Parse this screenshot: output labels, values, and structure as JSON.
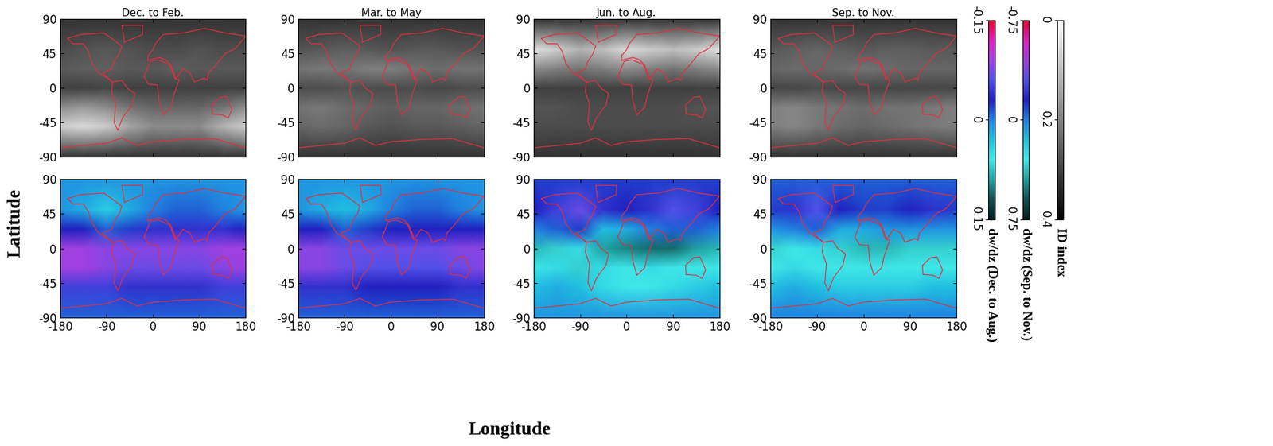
{
  "chart_data": {
    "type": "heatmap",
    "x_label": "Longitude",
    "y_label": "Latitude",
    "xlim": [
      -180,
      180
    ],
    "ylim": [
      -90,
      90
    ],
    "xticks": [
      -180,
      -90,
      0,
      90,
      180
    ],
    "yticks": [
      -90,
      -45,
      0,
      45,
      90
    ],
    "lon": [
      -180,
      -135,
      -90,
      -45,
      0,
      45,
      90,
      135,
      180
    ],
    "lat": [
      90,
      50,
      25,
      0,
      -25,
      -50,
      -90
    ],
    "colorbars": [
      {
        "label": "dw/dz (Dec. to Aug.)",
        "range": [
          -0.15,
          0.15
        ],
        "ticks": [
          -0.15,
          0,
          0.15
        ]
      },
      {
        "label": "dw/dz (Sep. to Nov.)",
        "range": [
          -0.75,
          0.75
        ],
        "ticks": [
          -0.75,
          0,
          0.75
        ]
      },
      {
        "label": "ID index",
        "range": [
          0,
          0.4
        ],
        "ticks": [
          0,
          0.2,
          0.4
        ]
      }
    ],
    "top_row": {
      "colorbar": "ID index",
      "panels": [
        {
          "title": "Dec. to Feb.",
          "cells": [
            [
              0.32,
              0.32,
              0.32,
              0.32,
              0.32,
              0.32,
              0.32,
              0.32,
              0.32
            ],
            [
              0.28,
              0.27,
              0.26,
              0.27,
              0.28,
              0.28,
              0.27,
              0.28,
              0.28
            ],
            [
              0.26,
              0.25,
              0.25,
              0.26,
              0.26,
              0.25,
              0.26,
              0.26,
              0.26
            ],
            [
              0.3,
              0.3,
              0.29,
              0.3,
              0.3,
              0.3,
              0.3,
              0.3,
              0.3
            ],
            [
              0.18,
              0.16,
              0.18,
              0.22,
              0.24,
              0.24,
              0.24,
              0.22,
              0.18
            ],
            [
              0.08,
              0.06,
              0.08,
              0.14,
              0.18,
              0.18,
              0.18,
              0.12,
              0.08
            ],
            [
              0.32,
              0.32,
              0.32,
              0.32,
              0.32,
              0.32,
              0.32,
              0.32,
              0.32
            ]
          ]
        },
        {
          "title": "Mar. to May",
          "cells": [
            [
              0.32,
              0.32,
              0.32,
              0.32,
              0.32,
              0.32,
              0.32,
              0.32,
              0.32
            ],
            [
              0.27,
              0.26,
              0.25,
              0.26,
              0.27,
              0.26,
              0.26,
              0.27,
              0.27
            ],
            [
              0.22,
              0.21,
              0.22,
              0.2,
              0.2,
              0.22,
              0.23,
              0.22,
              0.22
            ],
            [
              0.28,
              0.28,
              0.27,
              0.28,
              0.28,
              0.28,
              0.29,
              0.28,
              0.28
            ],
            [
              0.22,
              0.21,
              0.23,
              0.24,
              0.25,
              0.24,
              0.24,
              0.23,
              0.22
            ],
            [
              0.24,
              0.23,
              0.24,
              0.26,
              0.27,
              0.26,
              0.26,
              0.25,
              0.24
            ],
            [
              0.32,
              0.32,
              0.32,
              0.32,
              0.32,
              0.32,
              0.32,
              0.32,
              0.32
            ]
          ]
        },
        {
          "title": "Jun. to Aug.",
          "cells": [
            [
              0.32,
              0.32,
              0.32,
              0.32,
              0.32,
              0.32,
              0.32,
              0.32,
              0.32
            ],
            [
              0.05,
              0.08,
              0.12,
              0.1,
              0.06,
              0.08,
              0.1,
              0.08,
              0.05
            ],
            [
              0.18,
              0.2,
              0.22,
              0.2,
              0.18,
              0.2,
              0.22,
              0.2,
              0.18
            ],
            [
              0.3,
              0.3,
              0.3,
              0.3,
              0.3,
              0.3,
              0.3,
              0.3,
              0.3
            ],
            [
              0.27,
              0.27,
              0.28,
              0.28,
              0.28,
              0.28,
              0.28,
              0.27,
              0.27
            ],
            [
              0.28,
              0.28,
              0.28,
              0.28,
              0.28,
              0.28,
              0.28,
              0.28,
              0.28
            ],
            [
              0.32,
              0.32,
              0.32,
              0.32,
              0.32,
              0.32,
              0.32,
              0.32,
              0.32
            ]
          ]
        },
        {
          "title": "Sep. to Nov.",
          "cells": [
            [
              0.32,
              0.32,
              0.32,
              0.32,
              0.32,
              0.32,
              0.32,
              0.32,
              0.32
            ],
            [
              0.26,
              0.25,
              0.24,
              0.25,
              0.26,
              0.25,
              0.25,
              0.26,
              0.26
            ],
            [
              0.24,
              0.23,
              0.24,
              0.23,
              0.22,
              0.23,
              0.24,
              0.24,
              0.24
            ],
            [
              0.29,
              0.29,
              0.28,
              0.29,
              0.29,
              0.29,
              0.29,
              0.29,
              0.29
            ],
            [
              0.2,
              0.19,
              0.21,
              0.22,
              0.23,
              0.22,
              0.22,
              0.21,
              0.2
            ],
            [
              0.2,
              0.19,
              0.21,
              0.23,
              0.24,
              0.23,
              0.22,
              0.21,
              0.2
            ],
            [
              0.32,
              0.32,
              0.32,
              0.32,
              0.32,
              0.32,
              0.32,
              0.32,
              0.32
            ]
          ]
        }
      ]
    },
    "bottom_row": {
      "panels": [
        {
          "colorbar": "dw/dz (Dec. to Aug.)",
          "cells": [
            [
              0.01,
              0.01,
              0.01,
              0.01,
              0.01,
              0.01,
              0.01,
              0.01,
              0.01
            ],
            [
              0.01,
              0.02,
              0.04,
              0.02,
              0.0,
              -0.01,
              -0.01,
              0.0,
              0.01
            ],
            [
              -0.03,
              -0.03,
              -0.01,
              -0.02,
              -0.04,
              -0.04,
              -0.04,
              -0.04,
              -0.03
            ],
            [
              -0.09,
              -0.09,
              -0.08,
              -0.08,
              -0.08,
              -0.08,
              -0.08,
              -0.09,
              -0.09
            ],
            [
              -0.09,
              -0.09,
              -0.08,
              -0.07,
              -0.07,
              -0.07,
              -0.07,
              -0.08,
              -0.09
            ],
            [
              -0.05,
              -0.05,
              -0.05,
              -0.04,
              -0.04,
              -0.04,
              -0.04,
              -0.05,
              -0.05
            ],
            [
              -0.01,
              -0.01,
              -0.01,
              -0.01,
              -0.01,
              -0.01,
              -0.01,
              -0.01,
              -0.01
            ]
          ]
        },
        {
          "colorbar": "dw/dz (Dec. to Aug.)",
          "cells": [
            [
              0.01,
              0.01,
              0.01,
              0.01,
              0.01,
              0.01,
              0.01,
              0.01,
              0.01
            ],
            [
              0.01,
              0.02,
              0.03,
              0.02,
              0.0,
              -0.01,
              -0.01,
              0.0,
              0.01
            ],
            [
              -0.03,
              -0.03,
              -0.01,
              -0.02,
              -0.03,
              -0.03,
              -0.03,
              -0.03,
              -0.03
            ],
            [
              -0.08,
              -0.08,
              -0.07,
              -0.07,
              -0.07,
              -0.07,
              -0.07,
              -0.08,
              -0.08
            ],
            [
              -0.08,
              -0.08,
              -0.07,
              -0.06,
              -0.06,
              -0.06,
              -0.06,
              -0.07,
              -0.08
            ],
            [
              -0.04,
              -0.04,
              -0.04,
              -0.03,
              -0.03,
              -0.03,
              -0.03,
              -0.04,
              -0.04
            ],
            [
              -0.01,
              -0.01,
              -0.01,
              -0.01,
              -0.01,
              -0.01,
              -0.01,
              -0.01,
              -0.01
            ]
          ]
        },
        {
          "colorbar": "dw/dz (Dec. to Aug.)",
          "cells": [
            [
              -0.02,
              -0.02,
              -0.02,
              -0.02,
              -0.02,
              -0.02,
              -0.02,
              -0.02,
              -0.02
            ],
            [
              -0.03,
              -0.05,
              -0.07,
              -0.04,
              -0.03,
              -0.04,
              -0.06,
              -0.05,
              -0.03
            ],
            [
              0.0,
              -0.01,
              -0.02,
              0.03,
              0.02,
              0.0,
              -0.01,
              -0.01,
              0.0
            ],
            [
              0.08,
              0.07,
              0.05,
              0.09,
              0.1,
              0.11,
              0.11,
              0.09,
              0.08
            ],
            [
              0.06,
              0.05,
              0.07,
              0.05,
              0.06,
              0.05,
              0.06,
              0.06,
              0.06
            ],
            [
              0.03,
              0.02,
              0.03,
              0.05,
              0.06,
              0.06,
              0.05,
              0.04,
              0.03
            ],
            [
              0.01,
              0.01,
              0.01,
              0.01,
              0.01,
              0.01,
              0.01,
              0.01,
              0.01
            ]
          ]
        },
        {
          "colorbar": "dw/dz (Sep. to Nov.)",
          "cells": [
            [
              -0.05,
              -0.05,
              -0.05,
              -0.05,
              -0.05,
              -0.05,
              -0.05,
              -0.05,
              -0.05
            ],
            [
              -0.1,
              -0.2,
              -0.3,
              -0.15,
              -0.1,
              -0.1,
              -0.15,
              -0.2,
              -0.1
            ],
            [
              0.05,
              0.0,
              -0.05,
              0.1,
              0.1,
              0.05,
              0.05,
              0.05,
              0.05
            ],
            [
              0.35,
              0.3,
              0.25,
              0.35,
              0.4,
              0.4,
              0.35,
              0.35,
              0.35
            ],
            [
              0.3,
              0.25,
              0.3,
              0.3,
              0.3,
              0.3,
              0.3,
              0.3,
              0.3
            ],
            [
              0.15,
              0.1,
              0.15,
              0.2,
              0.2,
              0.2,
              0.2,
              0.15,
              0.15
            ],
            [
              0.0,
              0.0,
              0.0,
              0.0,
              0.0,
              0.0,
              0.0,
              0.0,
              0.0
            ]
          ]
        }
      ]
    }
  }
}
